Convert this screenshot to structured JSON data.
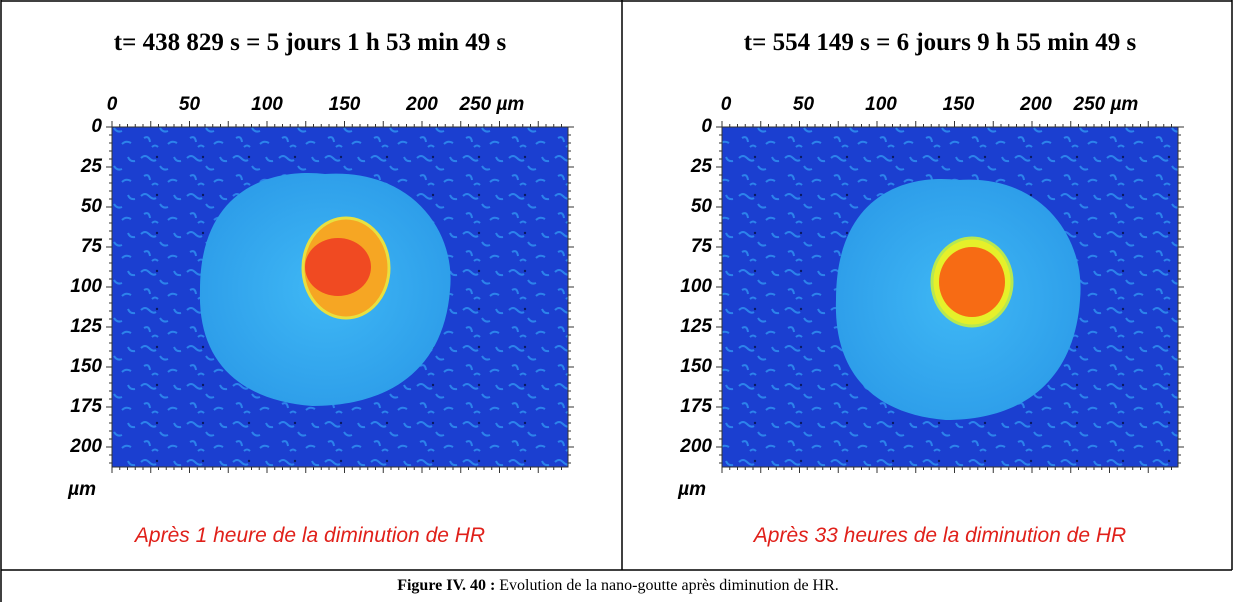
{
  "panels": [
    {
      "title": "t= 438 829 s = 5 jours 1 h 53 min 49 s",
      "x_ticks": [
        "0",
        "50",
        "100",
        "150",
        "200",
        "250 µm"
      ],
      "y_ticks": [
        "0",
        "25",
        "50",
        "75",
        "100",
        "125",
        "150",
        "175",
        "200"
      ],
      "y_unit": "µm",
      "caption": "Après 1 heure de la diminution de HR"
    },
    {
      "title": "t= 554 149 s = 6 jours 9 h 55 min 49 s",
      "x_ticks": [
        "0",
        "50",
        "100",
        "150",
        "200",
        "250 µm"
      ],
      "y_ticks": [
        "0",
        "25",
        "50",
        "75",
        "100",
        "125",
        "150",
        "175",
        "200"
      ],
      "y_unit": "µm",
      "caption": "Après 33 heures de la diminution de HR"
    }
  ],
  "figure_caption": {
    "label": "Figure IV. 40 :",
    "text": "Evolution de la nano-goutte après diminution de HR."
  }
}
